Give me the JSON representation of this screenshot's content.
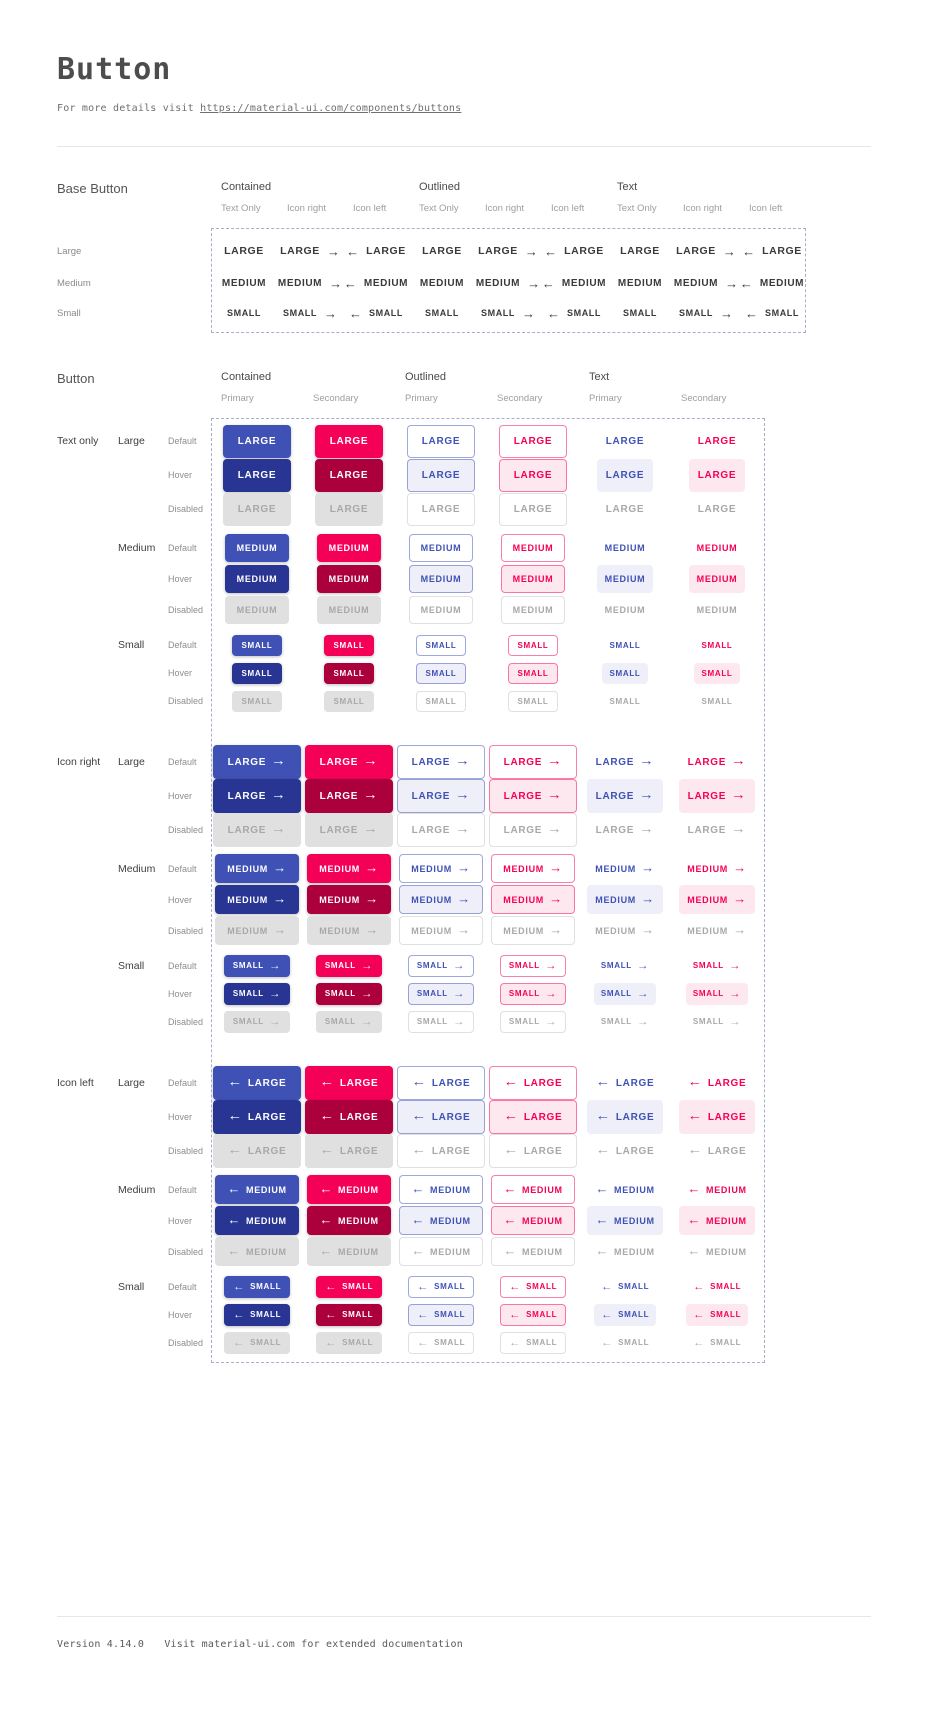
{
  "page": {
    "title": "Button",
    "note_prefix": "For more details visit",
    "note_link": "https://material-ui.com/components/buttons"
  },
  "base_button": {
    "title": "Base Button",
    "groups": [
      "Contained",
      "Outlined",
      "Text"
    ],
    "variants": [
      "Text Only",
      "Icon right",
      "Icon left"
    ],
    "rows": [
      {
        "label": "Large",
        "text": "LARGE"
      },
      {
        "label": "Medium",
        "text": "MEDIUM"
      },
      {
        "label": "Small",
        "text": "SMALL"
      }
    ]
  },
  "button": {
    "title": "Button",
    "groups": [
      "Contained",
      "Outlined",
      "Text"
    ],
    "palettes": [
      "Primary",
      "Secondary"
    ],
    "variant_groups": [
      {
        "label": "Text only",
        "icon": "none"
      },
      {
        "label": "Icon right",
        "icon": "right"
      },
      {
        "label": "Icon left",
        "icon": "left"
      }
    ],
    "sizes": [
      {
        "label": "Large",
        "text": "LARGE"
      },
      {
        "label": "Medium",
        "text": "MEDIUM"
      },
      {
        "label": "Small",
        "text": "SMALL"
      }
    ],
    "states": [
      "Default",
      "Hover",
      "Disabled"
    ]
  },
  "icons": {
    "arrow_right": "→",
    "arrow_left": "←"
  },
  "colors": {
    "primary": "#3F51B5",
    "primary_hover": "#283593",
    "secondary": "#F50057",
    "secondary_hover": "#AB003C",
    "disabled_bg": "#E0E0E0",
    "disabled_text": "#A8A8A8",
    "dashed_border": "#A9AEC6"
  },
  "footer": {
    "version": "Version 4.14.0",
    "note": "Visit material-ui.com for extended documentation"
  }
}
